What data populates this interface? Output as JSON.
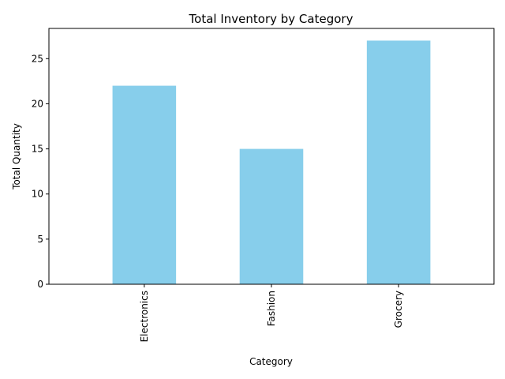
{
  "chart_data": {
    "type": "bar",
    "title": "Total Inventory by Category",
    "xlabel": "Category",
    "ylabel": "Total Quantity",
    "categories": [
      "Electronics",
      "Fashion",
      "Grocery"
    ],
    "values": [
      22,
      15,
      27
    ],
    "ylim": [
      0,
      28.35
    ],
    "yticks": [
      0,
      5,
      10,
      15,
      20,
      25
    ],
    "grid": false,
    "legend": "none",
    "bar_color": "#87CEEB"
  }
}
